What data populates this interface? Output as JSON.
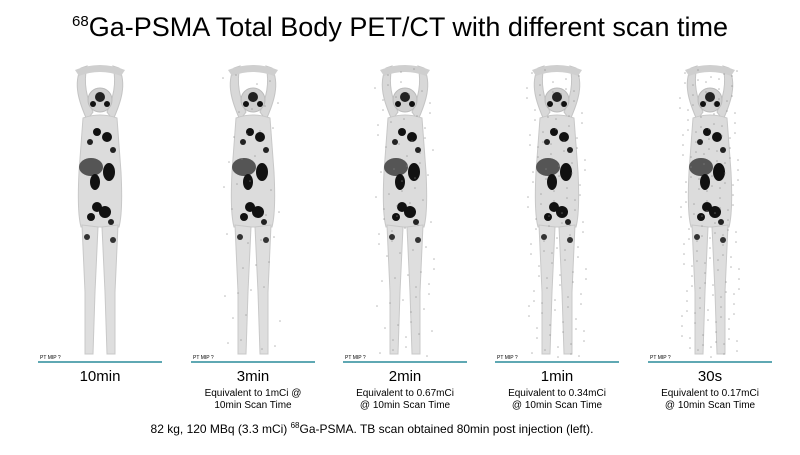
{
  "header": {
    "title": {
      "sup": "68",
      "text": "Ga-PSMA Total Body PET/CT with different scan time"
    }
  },
  "panels": [
    {
      "tag": "PT MIP ?",
      "label": "10min",
      "lines": []
    },
    {
      "tag": "PT MIP ?",
      "label": "3min",
      "lines": [
        "Equivalent to 1mCi @",
        "10min Scan Time"
      ]
    },
    {
      "tag": "PT MIP ?",
      "label": "2min",
      "lines": [
        "Equivalent to 0.67mCi",
        "@ 10min Scan Time"
      ]
    },
    {
      "tag": "PT MIP ?",
      "label": "1min",
      "lines": [
        "Equivalent to 0.34mCi",
        "@ 10min Scan Time"
      ]
    },
    {
      "tag": "PT MIP ?",
      "label": "30s",
      "lines": [
        "Equivalent to 0.17mCi",
        "@ 10min Scan Time"
      ]
    }
  ],
  "footer": {
    "before": "82 kg, 120 MBq (3.3 mCi) ",
    "sup": "68",
    "after": "Ga-PSMA. TB scan obtained 80min post injection (left)."
  }
}
